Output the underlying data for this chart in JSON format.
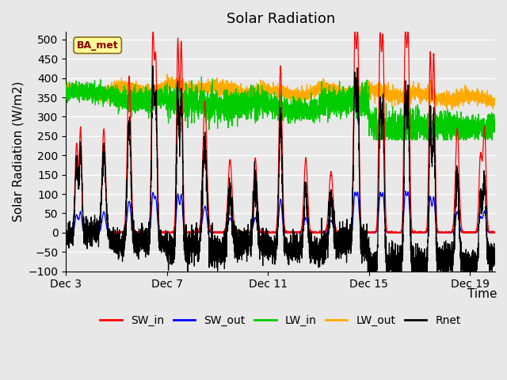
{
  "title": "Solar Radiation",
  "xlabel": "Time",
  "ylabel": "Solar Radiation (W/m2)",
  "ylim": [
    -100,
    520
  ],
  "yticks": [
    -100,
    -50,
    0,
    50,
    100,
    150,
    200,
    250,
    300,
    350,
    400,
    450,
    500
  ],
  "xlim_start": 0,
  "xlim_end": 17,
  "xtick_positions": [
    0,
    4,
    8,
    12,
    16
  ],
  "xtick_labels": [
    "Dec 3",
    "Dec 7",
    "Dec 11",
    "Dec 15",
    "Dec 19"
  ],
  "colors": {
    "SW_in": "#ff0000",
    "SW_out": "#0000ff",
    "LW_in": "#00cc00",
    "LW_out": "#ffaa00",
    "Rnet": "#000000"
  },
  "background_color": "#e8e8e8",
  "plot_bg_color": "#e8e8e8",
  "legend_label": "BA_met",
  "legend_label_color": "#8B0000",
  "legend_box_color": "#ffff99",
  "grid_color": "#ffffff",
  "title_fontsize": 13,
  "axis_fontsize": 11,
  "tick_fontsize": 10,
  "legend_fontsize": 10
}
